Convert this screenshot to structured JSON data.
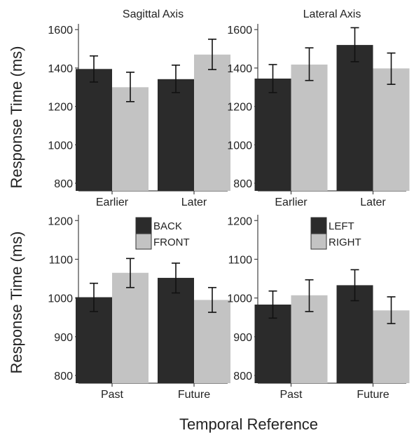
{
  "figure": {
    "x_title": "Temporal Reference",
    "y_title": "Response Time (ms)"
  },
  "legends": [
    {
      "entries": [
        {
          "label": "BACK",
          "color": "#2b2b2b"
        },
        {
          "label": "FRONT",
          "color": "#c3c3c3"
        }
      ]
    },
    {
      "entries": [
        {
          "label": "LEFT",
          "color": "#2b2b2b"
        },
        {
          "label": "RIGHT",
          "color": "#c3c3c3"
        }
      ]
    }
  ],
  "chart_data": [
    {
      "type": "bar",
      "title": "Sagittal Axis",
      "categories": [
        "Earlier",
        "Later"
      ],
      "ylim": [
        760,
        1630
      ],
      "yticks": [
        800,
        1000,
        1200,
        1400,
        1600
      ],
      "series": [
        {
          "name": "BACK",
          "color": "#2b2b2b",
          "values": [
            1395,
            1342
          ],
          "err_low": [
            1327,
            1272
          ],
          "err_high": [
            1463,
            1415
          ]
        },
        {
          "name": "FRONT",
          "color": "#c3c3c3",
          "values": [
            1300,
            1470
          ],
          "err_low": [
            1225,
            1392
          ],
          "err_high": [
            1378,
            1550
          ]
        }
      ]
    },
    {
      "type": "bar",
      "title": "Lateral Axis",
      "categories": [
        "Earlier",
        "Later"
      ],
      "ylim": [
        760,
        1630
      ],
      "yticks": [
        800,
        1000,
        1200,
        1400,
        1600
      ],
      "series": [
        {
          "name": "LEFT",
          "color": "#2b2b2b",
          "values": [
            1345,
            1520
          ],
          "err_low": [
            1272,
            1433
          ],
          "err_high": [
            1418,
            1610
          ]
        },
        {
          "name": "RIGHT",
          "color": "#c3c3c3",
          "values": [
            1418,
            1398
          ],
          "err_low": [
            1335,
            1315
          ],
          "err_high": [
            1505,
            1478
          ]
        }
      ]
    },
    {
      "type": "bar",
      "title": "",
      "categories": [
        "Past",
        "Future"
      ],
      "ylim": [
        780,
        1215
      ],
      "yticks": [
        800,
        900,
        1000,
        1100,
        1200
      ],
      "series": [
        {
          "name": "BACK",
          "color": "#2b2b2b",
          "values": [
            1002,
            1052
          ],
          "err_low": [
            965,
            1013
          ],
          "err_high": [
            1038,
            1090
          ]
        },
        {
          "name": "FRONT",
          "color": "#c3c3c3",
          "values": [
            1065,
            995
          ],
          "err_low": [
            1027,
            963
          ],
          "err_high": [
            1102,
            1027
          ]
        }
      ]
    },
    {
      "type": "bar",
      "title": "",
      "categories": [
        "Past",
        "Future"
      ],
      "ylim": [
        780,
        1215
      ],
      "yticks": [
        800,
        900,
        1000,
        1100,
        1200
      ],
      "series": [
        {
          "name": "LEFT",
          "color": "#2b2b2b",
          "values": [
            983,
            1033
          ],
          "err_low": [
            948,
            993
          ],
          "err_high": [
            1018,
            1073
          ]
        },
        {
          "name": "RIGHT",
          "color": "#c3c3c3",
          "values": [
            1007,
            968
          ],
          "err_low": [
            965,
            934
          ],
          "err_high": [
            1047,
            1003
          ]
        }
      ]
    }
  ]
}
